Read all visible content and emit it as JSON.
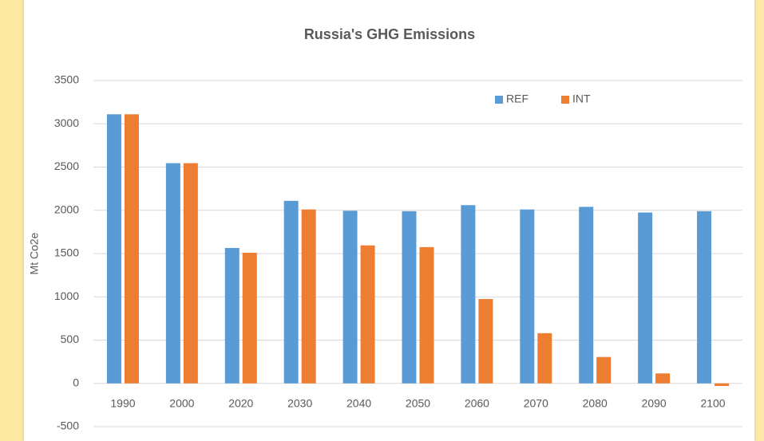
{
  "chart_data": {
    "type": "bar",
    "title": "Russia's GHG Emissions",
    "y_label": "Mt Co2e",
    "categories": [
      "1990",
      "2000",
      "2020",
      "2030",
      "2040",
      "2050",
      "2060",
      "2070",
      "2080",
      "2090",
      "2100"
    ],
    "series": [
      {
        "name": "REF",
        "color": "#5b9bd5",
        "values": [
          3110,
          2545,
          1565,
          2110,
          1995,
          1990,
          2060,
          2010,
          2040,
          1975,
          1990
        ]
      },
      {
        "name": "INT",
        "color": "#ed7d31",
        "values": [
          3110,
          2545,
          1510,
          2010,
          1595,
          1575,
          975,
          580,
          305,
          115,
          -30
        ]
      }
    ],
    "ylim": [
      -500,
      3500
    ],
    "yticks": [
      -500,
      0,
      500,
      1000,
      1500,
      2000,
      2500,
      3000,
      3500
    ],
    "grid": true,
    "legend": "top-right"
  }
}
